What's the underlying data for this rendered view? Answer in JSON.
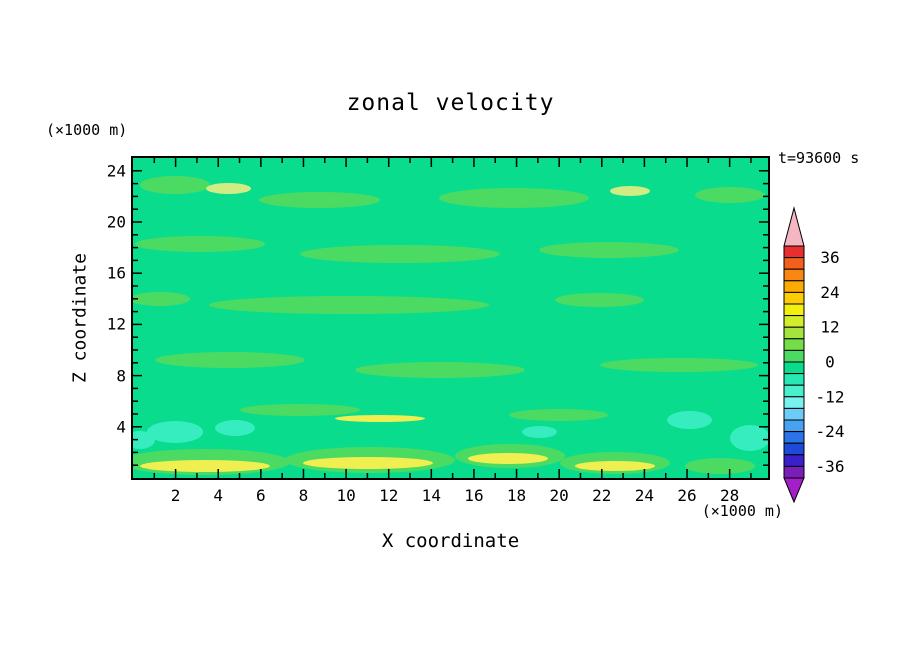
{
  "labels": {
    "title": "zonal velocity",
    "time": "t=93600 s",
    "x_axis": "X coordinate",
    "y_axis": "Z coordinate",
    "x_units": "(×1000 m)",
    "y_units": "(×1000 m)"
  },
  "chart_data": {
    "type": "contour",
    "title": "zonal velocity",
    "time_label": "t=93600 s",
    "xlabel": "X coordinate",
    "ylabel": "Z coordinate",
    "x_units": "(×1000 m)",
    "y_units": "(×1000 m)",
    "xlim": [
      0,
      29.8
    ],
    "ylim": [
      0,
      25
    ],
    "x_ticks": [
      2,
      4,
      6,
      8,
      10,
      12,
      14,
      16,
      18,
      20,
      22,
      24,
      26,
      28
    ],
    "y_ticks": [
      4,
      8,
      12,
      16,
      20,
      24
    ],
    "contour_interval": 4,
    "colorbar_range": [
      -40,
      40
    ],
    "colorbar_labels": [
      36,
      24,
      12,
      0,
      -12,
      -24,
      -36
    ],
    "colorbar_colors": [
      "#e82e2e",
      "#f2611c",
      "#fa8711",
      "#fcab05",
      "#facd05",
      "#f2ef0f",
      "#d3ed2d",
      "#a5e43c",
      "#74dd4a",
      "#4bdb63",
      "#09dc8d",
      "#27e8b4",
      "#4af0cc",
      "#78f2ee",
      "#6cccf5",
      "#48a2f2",
      "#2a74e8",
      "#1e4ad8",
      "#3a1fca",
      "#7a1eb8"
    ],
    "colorbar_arrow_top": "#f4b6c2",
    "colorbar_arrow_bottom": "#a320c8",
    "field_summary": "Zonal velocity cross-section at t=93600 s: field is mostly near 0 (green, -4..0 band) with weak horizontal streaks of 0..4 (lighter green), small negative pockets of -8..-4 (cyan) near the lower boundary, and thin positive streaks up to ~16 (yellow) along the bottom edge.",
    "field": {
      "base_level": "-4 to 0",
      "palette": {
        "base": "#09dc8d",
        "g2": "#4bdb63",
        "cy": "#36edc0",
        "yl": "#efef52",
        "yg": "#d2ec84"
      },
      "patches": [
        {
          "x": 6.6,
          "y": 8.4,
          "w": 11,
          "h": 5.6,
          "c": "g2"
        },
        {
          "x": 29.4,
          "y": 13,
          "w": 19,
          "h": 5,
          "c": "g2"
        },
        {
          "x": 60,
          "y": 12.5,
          "w": 23.6,
          "h": 6.2,
          "c": "g2"
        },
        {
          "x": 94,
          "y": 11.6,
          "w": 11,
          "h": 5,
          "c": "g2"
        },
        {
          "x": 10.5,
          "y": 27,
          "w": 20.5,
          "h": 5,
          "c": "g2"
        },
        {
          "x": 42,
          "y": 30,
          "w": 31.5,
          "h": 5.6,
          "c": "g2"
        },
        {
          "x": 75,
          "y": 28.8,
          "w": 22,
          "h": 5,
          "c": "g2"
        },
        {
          "x": 4.2,
          "y": 44,
          "w": 9.4,
          "h": 4.4,
          "c": "g2"
        },
        {
          "x": 34,
          "y": 46,
          "w": 44,
          "h": 5.6,
          "c": "g2"
        },
        {
          "x": 73.5,
          "y": 44.4,
          "w": 14,
          "h": 4.4,
          "c": "g2"
        },
        {
          "x": 15.3,
          "y": 63,
          "w": 23.6,
          "h": 5,
          "c": "g2"
        },
        {
          "x": 48.3,
          "y": 66.3,
          "w": 26.8,
          "h": 5,
          "c": "g2"
        },
        {
          "x": 86,
          "y": 64.7,
          "w": 25,
          "h": 4.4,
          "c": "g2"
        },
        {
          "x": 26.3,
          "y": 78.8,
          "w": 19,
          "h": 3.8,
          "c": "g2"
        },
        {
          "x": 67,
          "y": 80.3,
          "w": 15.7,
          "h": 3.8,
          "c": "g2"
        },
        {
          "x": 11.3,
          "y": 95,
          "w": 26.8,
          "h": 8.1,
          "c": "g2"
        },
        {
          "x": 37.3,
          "y": 94.4,
          "w": 26.8,
          "h": 8.1,
          "c": "g2"
        },
        {
          "x": 59.4,
          "y": 93.1,
          "w": 17.3,
          "h": 7.5,
          "c": "g2"
        },
        {
          "x": 75.9,
          "y": 95.3,
          "w": 17.3,
          "h": 6.9,
          "c": "g2"
        },
        {
          "x": 92.4,
          "y": 96.3,
          "w": 11,
          "h": 5,
          "c": "g2"
        },
        {
          "x": 15,
          "y": 9.4,
          "w": 7.1,
          "h": 3.4,
          "c": "yg"
        },
        {
          "x": 78.3,
          "y": 10.3,
          "w": 6.3,
          "h": 3.1,
          "c": "yg"
        },
        {
          "x": 6.6,
          "y": 85.6,
          "w": 8.7,
          "h": 6.9,
          "c": "cy"
        },
        {
          "x": 16,
          "y": 84.4,
          "w": 6.3,
          "h": 5,
          "c": "cy"
        },
        {
          "x": 64,
          "y": 85.6,
          "w": 5.5,
          "h": 3.8,
          "c": "cy"
        },
        {
          "x": 87.7,
          "y": 81.9,
          "w": 7.1,
          "h": 5.6,
          "c": "cy"
        },
        {
          "x": 97.2,
          "y": 87.5,
          "w": 6.3,
          "h": 8.1,
          "c": "cy"
        },
        {
          "x": 1.1,
          "y": 88,
          "w": 4.7,
          "h": 5.6,
          "c": "cy"
        },
        {
          "x": 11.3,
          "y": 96.3,
          "w": 20.5,
          "h": 3.8,
          "c": "yl"
        },
        {
          "x": 37,
          "y": 95.3,
          "w": 20.5,
          "h": 3.8,
          "c": "yl"
        },
        {
          "x": 59,
          "y": 93.8,
          "w": 12.6,
          "h": 3.4,
          "c": "yl"
        },
        {
          "x": 75.9,
          "y": 96.3,
          "w": 12.6,
          "h": 3.1,
          "c": "yl"
        },
        {
          "x": 38.9,
          "y": 81.3,
          "w": 14.2,
          "h": 2.2,
          "c": "yl"
        }
      ]
    }
  }
}
